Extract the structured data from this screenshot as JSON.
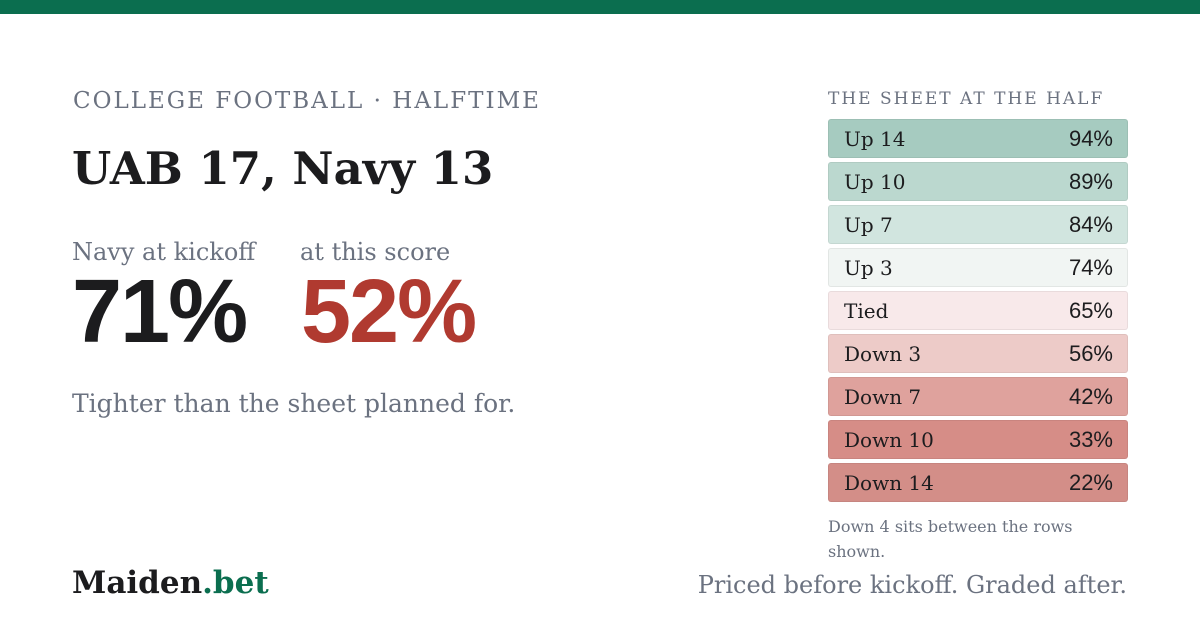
{
  "kicker": "COLLEGE FOOTBALL · HALFTIME",
  "headline": "UAB 17, Navy 13",
  "stats": {
    "kickoff_label": "Navy at kickoff",
    "kickoff_value": "71%",
    "score_label": "at this score",
    "score_value": "52%"
  },
  "tagline": "Tighter than the sheet planned for.",
  "sheet": {
    "title": "THE SHEET AT THE HALF",
    "rows": [
      {
        "label": "Up 14",
        "value": "94%",
        "color": "#a6cbc0"
      },
      {
        "label": "Up 10",
        "value": "89%",
        "color": "#bbd8cf"
      },
      {
        "label": "Up 7",
        "value": "84%",
        "color": "#d1e5df"
      },
      {
        "label": "Up 3",
        "value": "74%",
        "color": "#f1f5f3"
      },
      {
        "label": "Tied",
        "value": "65%",
        "color": "#f8e9ea"
      },
      {
        "label": "Down 3",
        "value": "56%",
        "color": "#edcbc8"
      },
      {
        "label": "Down 7",
        "value": "42%",
        "color": "#dfa29d"
      },
      {
        "label": "Down 10",
        "value": "33%",
        "color": "#d68d87"
      },
      {
        "label": "Down 14",
        "value": "22%",
        "color": "#d38e88"
      }
    ],
    "note": "Down 4 sits between the rows shown."
  },
  "brand": {
    "name": "Maiden",
    "suffix": ".bet"
  },
  "footer_note": "Priced before kickoff. Graded after.",
  "colors": {
    "accent": "#0b6e4f",
    "negative": "#b03a30",
    "text": "#1c1c1e",
    "muted": "#6b7280"
  }
}
